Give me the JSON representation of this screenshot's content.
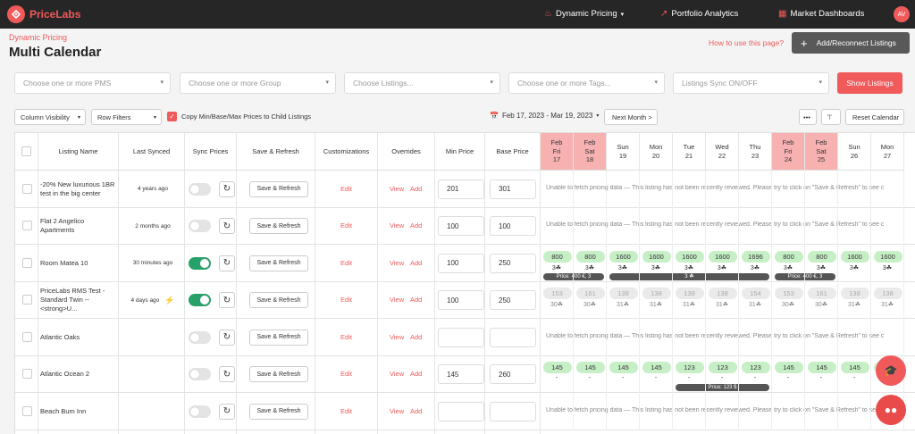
{
  "nav": {
    "brand": "PriceLabs",
    "dynamic_pricing": "Dynamic Pricing",
    "portfolio_analytics": "Portfolio Analytics",
    "market_dashboards": "Market Dashboards",
    "avatar": "AV"
  },
  "header": {
    "breadcrumb": "Dynamic Pricing",
    "title": "Multi Calendar",
    "how_to": "How to use this page?",
    "add_button": "Add/Reconnect Listings"
  },
  "filters": {
    "pms": "Choose one or more PMS",
    "group": "Choose one or more Group",
    "listings": "Choose Listings...",
    "tags": "Choose one or more Tags...",
    "sync": "Listings Sync ON/OFF",
    "show": "Show Listings"
  },
  "controls": {
    "column_visibility": "Column Visibility",
    "row_filters": "Row Filters",
    "copy_prices": "Copy Min/Base/Max Prices to Child Listings",
    "date_range": "Feb 17, 2023 - Mar 19, 2023",
    "next_month": "Next Month >",
    "more": "•••",
    "reset": "Reset Calendar"
  },
  "columns": {
    "name": "Listing Name",
    "last_synced": "Last Synced",
    "sync_prices": "Sync Prices",
    "save_refresh": "Save & Refresh",
    "customizations": "Customizations",
    "overrides": "Overrides",
    "min_price": "Min Price",
    "base_price": "Base Price"
  },
  "dates": [
    {
      "dow": "Fri",
      "day": "17",
      "mon": "Feb",
      "weekend": true
    },
    {
      "dow": "Sat",
      "day": "18",
      "mon": "Feb",
      "weekend": true
    },
    {
      "dow": "Sun",
      "day": "19",
      "mon": "",
      "weekend": false
    },
    {
      "dow": "Mon",
      "day": "20",
      "mon": "",
      "weekend": false
    },
    {
      "dow": "Tue",
      "day": "21",
      "mon": "",
      "weekend": false
    },
    {
      "dow": "Wed",
      "day": "22",
      "mon": "",
      "weekend": false
    },
    {
      "dow": "Thu",
      "day": "23",
      "mon": "",
      "weekend": false
    },
    {
      "dow": "Fri",
      "day": "24",
      "mon": "Feb",
      "weekend": true
    },
    {
      "dow": "Sat",
      "day": "25",
      "mon": "Feb",
      "weekend": true
    },
    {
      "dow": "Sun",
      "day": "26",
      "mon": "",
      "weekend": false
    },
    {
      "dow": "Mon",
      "day": "27",
      "mon": "",
      "weekend": false
    }
  ],
  "actions": {
    "save": "Save & Refresh",
    "edit": "Edit",
    "view": "View",
    "add": "Add"
  },
  "unable_message": "Unable to fetch pricing data  —  This listing has not been recently reviewed. Please try to click on \"Save & Refresh\" to see c",
  "rows": [
    {
      "name": "-20% New luxurious 1BR test in the big center",
      "synced": "4 years ago",
      "sync_on": false,
      "bolt": false,
      "min": "201",
      "base": "301",
      "status": "unable"
    },
    {
      "name": "Flat 2 Angelico Apartments",
      "synced": "2 months ago",
      "sync_on": false,
      "bolt": false,
      "min": "100",
      "base": "100",
      "status": "unable"
    },
    {
      "name": "Room Matea 10",
      "synced": "30 minutes ago",
      "sync_on": true,
      "bolt": false,
      "min": "100",
      "base": "250",
      "status": "prices",
      "style": "green",
      "prices": [
        "800",
        "800",
        "1600",
        "1600",
        "1600",
        "1600",
        "1696",
        "800",
        "800",
        "1600",
        "1600"
      ],
      "subs": [
        "3☘",
        "3☘",
        "3☘",
        "3☘",
        "3☘",
        "3☘",
        "3☘",
        "3☘",
        "3☘",
        "3☘",
        "3☘"
      ],
      "bars": [
        {
          "label": "Price: 400 €, 3",
          "start": 0,
          "end": 2
        },
        {
          "label": "3 ☘",
          "start": 2,
          "end": 7
        },
        {
          "label": "Price: 400 €, 3",
          "start": 7,
          "end": 9
        }
      ]
    },
    {
      "name": "PriceLabs RMS Test - Standard Twin -- <strong>U...",
      "synced": "4 days ago",
      "sync_on": true,
      "bolt": true,
      "min": "100",
      "base": "250",
      "status": "prices",
      "style": "gray",
      "prices": [
        "153",
        "161",
        "138",
        "138",
        "138",
        "138",
        "154",
        "153",
        "161",
        "138",
        "138"
      ],
      "subs": [
        "30☘",
        "30☘",
        "31☘",
        "31☘",
        "31☘",
        "31☘",
        "31☘",
        "30☘",
        "30☘",
        "31☘",
        "31☘"
      ],
      "bars": []
    },
    {
      "name": "Atlantic Oaks",
      "synced": "",
      "sync_on": false,
      "bolt": false,
      "min": "",
      "base": "",
      "status": "unable"
    },
    {
      "name": "Atlantic Ocean 2",
      "synced": "",
      "sync_on": false,
      "bolt": false,
      "min": "145",
      "base": "260",
      "status": "prices",
      "style": "green",
      "prices": [
        "145",
        "145",
        "145",
        "145",
        "123",
        "123",
        "123",
        "145",
        "145",
        "145",
        "145"
      ],
      "subs": [
        "-",
        "-",
        "-",
        "-",
        "-",
        "-",
        "-",
        "-",
        "-",
        "-",
        "-"
      ],
      "bars": [
        {
          "label": "Price: 123 $",
          "start": 4,
          "end": 7
        }
      ]
    },
    {
      "name": "Beach Bum Inn",
      "synced": "",
      "sync_on": false,
      "bolt": false,
      "min": "",
      "base": "",
      "status": "unable"
    }
  ],
  "colors": {
    "accent": "#f05a5b",
    "topbar": "#262626",
    "price_pill": "#c6efc6",
    "toggle_on": "#27a06a",
    "weekend": "#f7b1b1"
  }
}
